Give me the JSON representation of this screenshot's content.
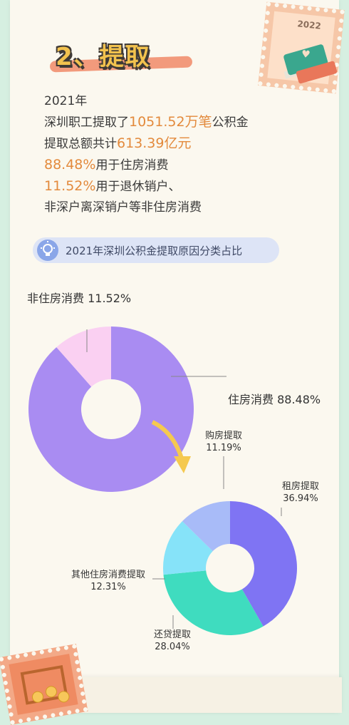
{
  "section": {
    "title": "2、提取",
    "stamp_year": "2022"
  },
  "summary": {
    "line1": "2021年",
    "line2_pre": "深圳职工提取了",
    "line2_value": "1051.52万笔",
    "line2_post": "公积金",
    "line3_pre": "提取总额共计",
    "line3_value": "613.39亿元",
    "line4_value": "88.48%",
    "line4_post": "用于住房消费",
    "line5_value": "11.52%",
    "line5_post": "用于退休销户、",
    "line6": "非深户离深销户等非住房消费"
  },
  "subtitle": {
    "text": "2021年深圳公积金提取原因分类占比",
    "icon": "lightbulb-icon"
  },
  "chart_data": [
    {
      "type": "pie",
      "donut": true,
      "title": "",
      "categories": [
        "住房消费",
        "非住房消费"
      ],
      "values": [
        88.48,
        11.52
      ],
      "labels": [
        "住房消费 88.48%",
        "非住房消费 11.52%"
      ],
      "colors": [
        "#a98cf2",
        "#fad0f2"
      ]
    },
    {
      "type": "pie",
      "donut": true,
      "title": "",
      "categories": [
        "租房提取",
        "还贷提取",
        "其他住房消费提取",
        "购房提取"
      ],
      "values": [
        36.94,
        28.04,
        12.31,
        11.19
      ],
      "label_names": [
        "租房提取",
        "还贷提取",
        "其他住房消费提取",
        "购房提取"
      ],
      "label_values": [
        "36.94%",
        "28.04%",
        "12.31%",
        "11.19%"
      ],
      "colors": [
        "#7f74f3",
        "#3fdcbf",
        "#86e3f9",
        "#a8bbf8"
      ]
    }
  ]
}
